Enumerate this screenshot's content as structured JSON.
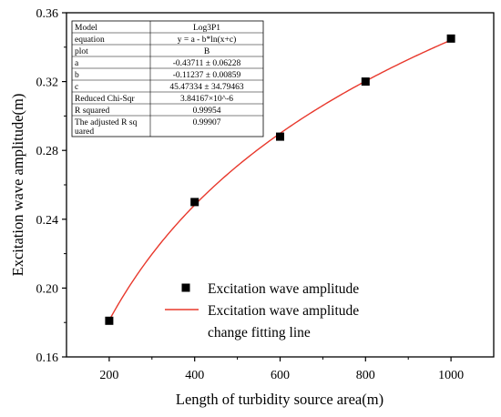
{
  "chart_data": {
    "type": "scatter",
    "xlabel": "Length of turbidity source area(m)",
    "ylabel": "Excitation wave amplitude(m)",
    "xlim": [
      100,
      1100
    ],
    "ylim": [
      0.16,
      0.36
    ],
    "xticks": [
      "200",
      "400",
      "600",
      "800",
      "1000"
    ],
    "yticks": [
      "0.16",
      "0.20",
      "0.24",
      "0.28",
      "0.32",
      "0.36"
    ],
    "grid": false,
    "legend_position": "lower-right",
    "series": [
      {
        "name": "Excitation wave amplitude",
        "kind": "scatter",
        "color": "#000000",
        "x": [
          200,
          400,
          600,
          800,
          1000
        ],
        "y": [
          0.181,
          0.25,
          0.288,
          0.32,
          0.345
        ]
      },
      {
        "name": "Excitation wave amplitude change fitting line",
        "kind": "line",
        "color": "#e8382c",
        "model": {
          "a": -0.43711,
          "b": -0.11237,
          "c": 45.47334
        }
      }
    ],
    "legend": {
      "scatter_label": "Excitation wave amplitude",
      "line_label_1": "Excitation wave amplitude",
      "line_label_2": "change fitting line"
    },
    "fit_table": [
      {
        "label": "Model",
        "value": "Log3P1"
      },
      {
        "label": "equation",
        "value": "y = a - b*ln(x+c)"
      },
      {
        "label": "plot",
        "value": "B"
      },
      {
        "label": "a",
        "value": "-0.43711 ± 0.06228"
      },
      {
        "label": "b",
        "value": "-0.11237 ± 0.00859"
      },
      {
        "label": "c",
        "value": "45.47334 ± 34.79463"
      },
      {
        "label": "Reduced Chi-Sqr",
        "value": "3.84167×10^-6"
      },
      {
        "label": "R squared",
        "value": "0.99954"
      },
      {
        "label": "The adjusted R squared",
        "label_line1": "The adjusted R sq",
        "label_line2": "uared",
        "value": "0.99907"
      }
    ]
  }
}
